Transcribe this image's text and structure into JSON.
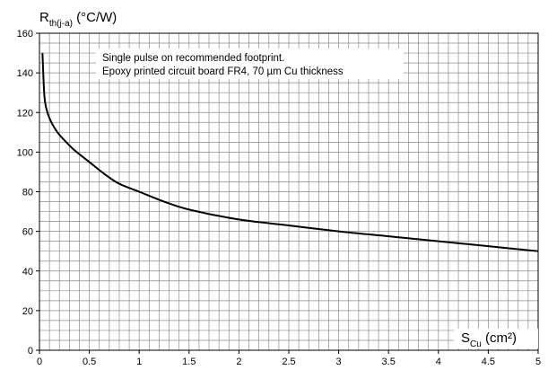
{
  "chart_data": {
    "type": "line",
    "ylabel": {
      "main": "R",
      "sub": "th(j-a)",
      "unit": " (°C/W)"
    },
    "xlabel": {
      "main": "S",
      "sub": "Cu",
      "unit": " (cm²)"
    },
    "annotation": [
      "Single pulse on recommended footprint.",
      "Epoxy printed circuit board FR4, 70 µm Cu thickness"
    ],
    "xlim": [
      0,
      5
    ],
    "ylim": [
      0,
      160
    ],
    "x_ticks": [
      "0",
      "0.5",
      "1",
      "1.5",
      "2",
      "2.5",
      "3",
      "3.5",
      "4",
      "4.5",
      "5"
    ],
    "y_ticks": [
      "0",
      "20",
      "40",
      "60",
      "80",
      "100",
      "120",
      "140",
      "160"
    ],
    "grid": true,
    "series": [
      {
        "x": [
          0.03,
          0.05,
          0.08,
          0.12,
          0.18,
          0.25,
          0.35,
          0.5,
          0.65,
          0.8,
          1.0,
          1.25,
          1.5,
          2.0,
          2.5,
          3.0,
          3.5,
          4.0,
          4.5,
          5.0
        ],
        "y": [
          150,
          128,
          120,
          115,
          110,
          106,
          101,
          95,
          89,
          84,
          80,
          75,
          71,
          66,
          63,
          60,
          57.5,
          55,
          52.5,
          50
        ]
      }
    ]
  }
}
